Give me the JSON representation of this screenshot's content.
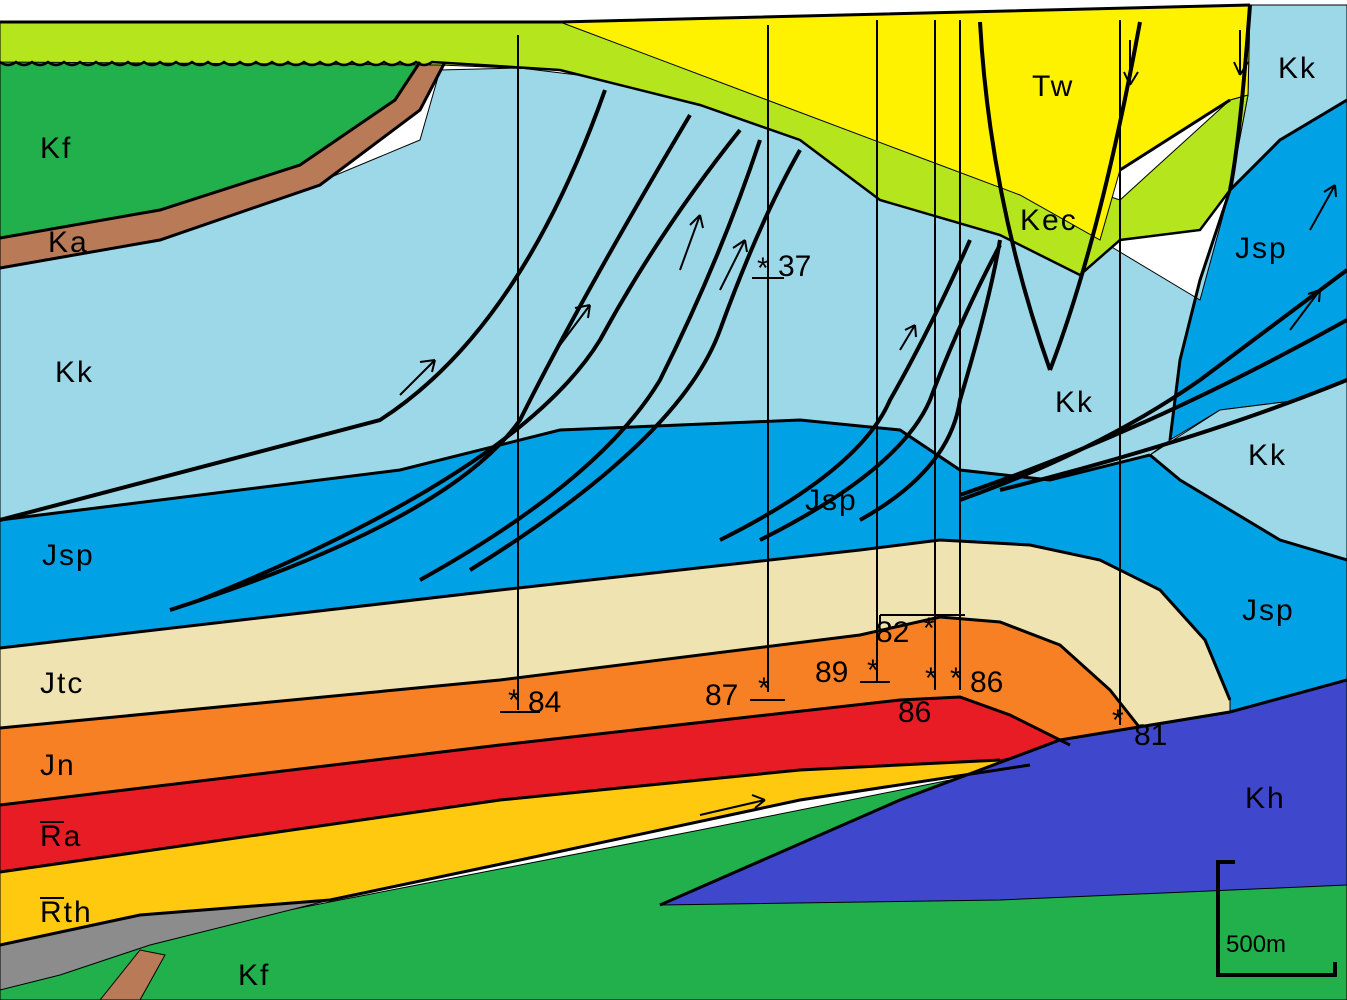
{
  "colors": {
    "Kf": "#21b04b",
    "Ka": "#b97a57",
    "Kk": "#9dd8e9",
    "Jsp": "#00a2e5",
    "Jtc": "#efe4b1",
    "Jn": "#f78024",
    "TRa": "#e81c25",
    "TRth": "#ffc90f",
    "basement": "#8c8c8c",
    "Kec": "#b5e61d",
    "Tw": "#fff200",
    "Kh": "#3f48cc",
    "lines": "#000000"
  },
  "units": {
    "Kf_upper": "Kf",
    "Ka": "Ka",
    "Kk_left": "Kk",
    "Jsp_left": "Jsp",
    "Jtc": "Jtc",
    "Jn": "Jn",
    "TRa": "Ra",
    "TRth": "Rth",
    "Kf_lower": "Kf",
    "Tw": "Tw",
    "Kk_topright": "Kk",
    "Jsp_right_upper": "Jsp",
    "Kec": "Kec",
    "Kk_center": "Kk",
    "Kk_right": "Kk",
    "Jsp_center": "Jsp",
    "Jsp_right_lower": "Jsp",
    "Kh": "Kh"
  },
  "wells": [
    {
      "label": "84"
    },
    {
      "label": "37"
    },
    {
      "label": "87"
    },
    {
      "label": "89"
    },
    {
      "label": "82"
    },
    {
      "label": "86"
    },
    {
      "label": "86"
    },
    {
      "label": "81"
    }
  ],
  "scale_bar": {
    "label": "500m"
  }
}
